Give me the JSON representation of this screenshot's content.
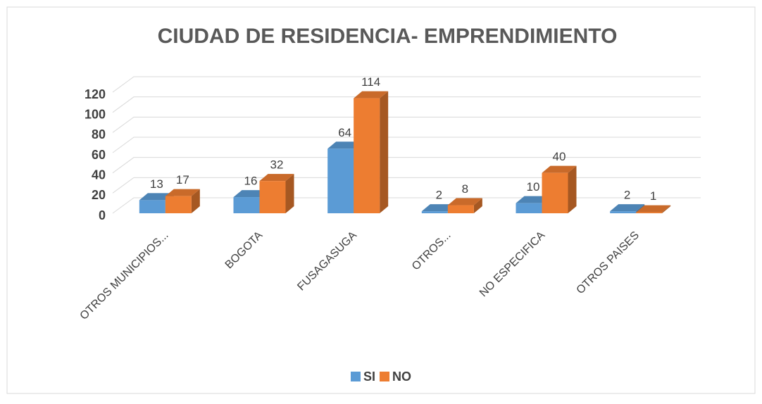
{
  "chart_data": {
    "type": "bar3d",
    "title": "CIUDAD DE RESIDENCIA- EMPRENDIMIENTO",
    "categories": [
      "OTROS MUNICIPIOS...",
      "BOGOTA",
      "FUSAGASUGA",
      "OTROS...",
      "NO ESPECIFICA",
      "OTROS PAISES"
    ],
    "series": [
      {
        "name": "SI",
        "color": "#5b9bd5",
        "values": [
          13,
          16,
          64,
          2,
          10,
          2
        ]
      },
      {
        "name": "NO",
        "color": "#ed7d31",
        "values": [
          17,
          32,
          114,
          8,
          40,
          1
        ]
      }
    ],
    "ylim": [
      0,
      120
    ],
    "yticks": [
      0,
      20,
      40,
      60,
      80,
      100,
      120
    ],
    "grid": true,
    "legend": "bottom"
  }
}
